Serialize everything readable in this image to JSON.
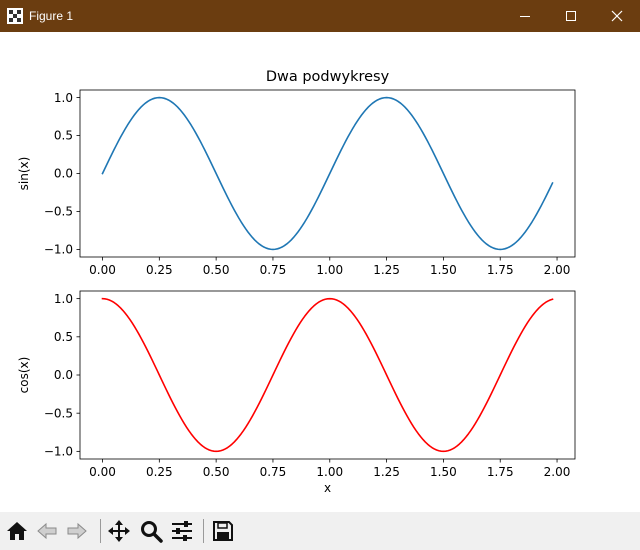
{
  "window": {
    "title": "Figure 1",
    "titlebar_color": "#6b3d10",
    "icon": "matplotlib-figure-icon",
    "controls": [
      "minimize-icon",
      "maximize-icon",
      "close-icon"
    ]
  },
  "chart_data": [
    {
      "type": "line",
      "title": "Dwa podwykresy",
      "xlabel": "",
      "ylabel": "sin(x)",
      "xlim": [
        -0.099,
        2.079
      ],
      "ylim": [
        -1.1,
        1.1
      ],
      "xticks": [
        "0.00",
        "0.25",
        "0.50",
        "0.75",
        "1.00",
        "1.25",
        "1.50",
        "1.75",
        "2.00"
      ],
      "yticks": [
        "−1.0",
        "−0.5",
        "0.0",
        "0.5",
        "1.0"
      ],
      "grid": false,
      "series": [
        {
          "function": "sin(2*pi*x)",
          "x_range": [
            0.0,
            1.98
          ],
          "step": 0.01,
          "color": "#1f77b4"
        }
      ]
    },
    {
      "type": "line",
      "title": "",
      "xlabel": "x",
      "ylabel": "cos(x)",
      "xlim": [
        -0.099,
        2.079
      ],
      "ylim": [
        -1.1,
        1.1
      ],
      "xticks": [
        "0.00",
        "0.25",
        "0.50",
        "0.75",
        "1.00",
        "1.25",
        "1.50",
        "1.75",
        "2.00"
      ],
      "yticks": [
        "−1.0",
        "−0.5",
        "0.0",
        "0.5",
        "1.0"
      ],
      "grid": false,
      "series": [
        {
          "function": "cos(2*pi*x)",
          "x_range": [
            0.0,
            1.98
          ],
          "step": 0.01,
          "color": "#ff0000"
        }
      ]
    }
  ],
  "toolbar": {
    "buttons": [
      {
        "name": "home",
        "icon": "home-icon"
      },
      {
        "name": "back",
        "icon": "back-arrow-icon"
      },
      {
        "name": "forward",
        "icon": "forward-arrow-icon"
      },
      {
        "name": "pan",
        "icon": "move-arrows-icon"
      },
      {
        "name": "zoom",
        "icon": "magnifier-icon"
      },
      {
        "name": "configure-subplots",
        "icon": "sliders-icon"
      },
      {
        "name": "save",
        "icon": "floppy-disk-icon"
      }
    ]
  }
}
